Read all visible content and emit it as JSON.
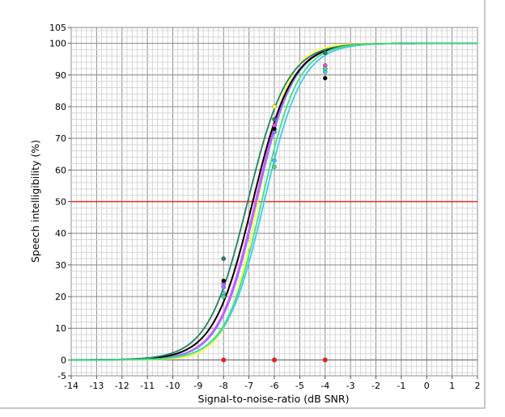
{
  "chart_data": {
    "type": "line",
    "title": "",
    "xlabel": "Signal-to-noise-ratio (dB SNR)",
    "ylabel": "Speech intelligibility (%)",
    "xlim": [
      -14,
      2
    ],
    "ylim": [
      -5,
      105
    ],
    "x_ticks": [
      -14,
      -13,
      -12,
      -11,
      -10,
      -9,
      -8,
      -7,
      -6,
      -5,
      -4,
      -3,
      -2,
      -1,
      0,
      1,
      2
    ],
    "y_ticks": [
      -5,
      0,
      10,
      20,
      30,
      40,
      50,
      60,
      70,
      80,
      90,
      100,
      105
    ],
    "grid": true,
    "minor_grid_step_x": 0.2,
    "minor_grid_step_y": 2,
    "reference_line": {
      "y": 50,
      "color": "#e03020"
    },
    "series": [
      {
        "color": "#ffff40",
        "midpoint": -6.65,
        "slope": 1.62,
        "points": [
          {
            "x": -8,
            "y": 21
          },
          {
            "x": -6,
            "y": 80
          },
          {
            "x": -4,
            "y": 97
          }
        ]
      },
      {
        "color": "#ff40ff",
        "midpoint": -6.75,
        "slope": 1.38,
        "points": [
          {
            "x": -8,
            "y": 24
          },
          {
            "x": -6,
            "y": 74
          },
          {
            "x": -4,
            "y": 93
          }
        ]
      },
      {
        "color": "#8080ff",
        "midpoint": -6.7,
        "slope": 1.38,
        "points": [
          {
            "x": -8,
            "y": 23
          },
          {
            "x": -6,
            "y": 72
          },
          {
            "x": -4,
            "y": 92
          }
        ]
      },
      {
        "color": "#000000",
        "midpoint": -6.85,
        "slope": 1.3,
        "points": [
          {
            "x": -8,
            "y": 25
          },
          {
            "x": -6,
            "y": 73
          },
          {
            "x": -4,
            "y": 89
          }
        ]
      },
      {
        "color": "#208060",
        "midpoint": -7.05,
        "slope": 1.28,
        "points": [
          {
            "x": -8,
            "y": 32
          },
          {
            "x": -6,
            "y": 76
          },
          {
            "x": -4,
            "y": 97
          }
        ]
      },
      {
        "color": "#40c8f0",
        "midpoint": -6.4,
        "slope": 1.35,
        "points": [
          {
            "x": -8,
            "y": 21
          },
          {
            "x": -6,
            "y": 63
          },
          {
            "x": -4,
            "y": 91
          }
        ]
      },
      {
        "color": "#40e080",
        "midpoint": -6.5,
        "slope": 1.4,
        "points": [
          {
            "x": -8,
            "y": 20
          },
          {
            "x": -6,
            "y": 61
          },
          {
            "x": -4,
            "y": 92
          }
        ]
      }
    ],
    "markers": {
      "color": "#e02020",
      "points": [
        {
          "x": -8,
          "y": 0
        },
        {
          "x": -6,
          "y": 0
        },
        {
          "x": -4,
          "y": 0
        }
      ]
    }
  }
}
